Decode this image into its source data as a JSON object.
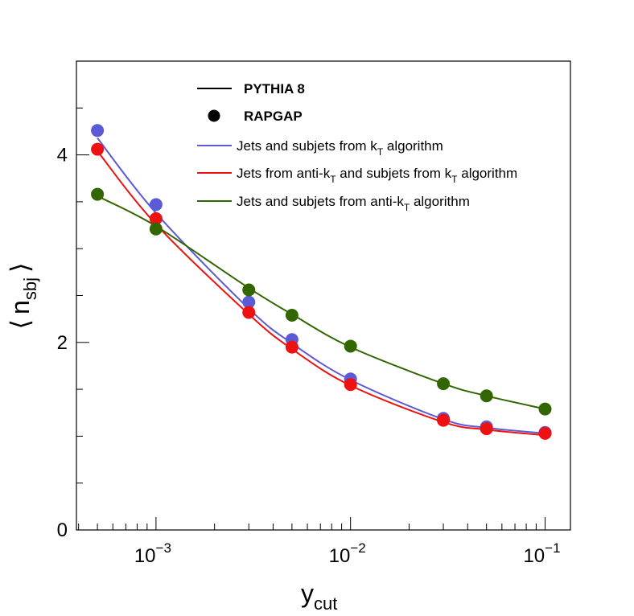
{
  "chart_data": {
    "type": "line",
    "x_scale": "log",
    "xlabel": {
      "main": "y",
      "sub": "cut"
    },
    "ylabel": {
      "left": "⟨",
      "main": "n",
      "sub": "sbj",
      "right": "⟩"
    },
    "xlim": [
      0.00039,
      0.135
    ],
    "ylim": [
      0,
      5
    ],
    "y_ticks": [
      {
        "value": 0,
        "label": "0"
      },
      {
        "value": 2,
        "label": "2"
      },
      {
        "value": 4,
        "label": "4"
      }
    ],
    "x_ticks": [
      {
        "value": 0.001,
        "base": "10",
        "exp": "−3"
      },
      {
        "value": 0.01,
        "base": "10",
        "exp": "−2"
      },
      {
        "value": 0.1,
        "base": "10",
        "exp": "−1"
      }
    ],
    "x": [
      0.0005,
      0.001,
      0.003,
      0.005,
      0.01,
      0.03,
      0.05,
      0.1
    ],
    "series": [
      {
        "name": "kt",
        "color": "#5b5bd6",
        "values": [
          4.26,
          3.47,
          2.43,
          2.03,
          1.61,
          1.19,
          1.1,
          1.04
        ],
        "curve": [
          [
            0.0005,
            4.18
          ],
          [
            0.001,
            3.38
          ],
          [
            0.003,
            2.36
          ],
          [
            0.005,
            1.99
          ],
          [
            0.01,
            1.6
          ],
          [
            0.03,
            1.18
          ],
          [
            0.05,
            1.09
          ],
          [
            0.1,
            1.03
          ]
        ]
      },
      {
        "name": "antikt-kt",
        "color": "#ee1111",
        "values": [
          4.06,
          3.32,
          2.32,
          1.95,
          1.55,
          1.17,
          1.08,
          1.03
        ],
        "curve": [
          [
            0.0005,
            4.04
          ],
          [
            0.001,
            3.26
          ],
          [
            0.003,
            2.3
          ],
          [
            0.005,
            1.93
          ],
          [
            0.01,
            1.54
          ],
          [
            0.03,
            1.15
          ],
          [
            0.05,
            1.07
          ],
          [
            0.1,
            1.01
          ]
        ]
      },
      {
        "name": "antikt",
        "color": "#336600",
        "values": [
          3.58,
          3.21,
          2.56,
          2.29,
          1.96,
          1.56,
          1.43,
          1.29
        ],
        "curve": [
          [
            0.0005,
            3.56
          ],
          [
            0.001,
            3.24
          ],
          [
            0.003,
            2.58
          ],
          [
            0.005,
            2.3
          ],
          [
            0.01,
            1.95
          ],
          [
            0.03,
            1.56
          ],
          [
            0.05,
            1.43
          ],
          [
            0.1,
            1.29
          ]
        ]
      }
    ],
    "legend": {
      "placement": "top-center",
      "style_entries": [
        {
          "symbol": "line",
          "label": "PYTHIA 8"
        },
        {
          "symbol": "marker",
          "label": "RAPGAP"
        }
      ],
      "series_entries": [
        {
          "series": "kt",
          "parts": [
            "Jets and subjets from k",
            "T",
            " algorithm"
          ]
        },
        {
          "series": "antikt-kt",
          "parts": [
            "Jets from anti-k",
            "T",
            " and subjets from k",
            "T",
            " algorithm"
          ]
        },
        {
          "series": "antikt",
          "parts": [
            "Jets and subjets from anti-k",
            "T",
            " algorithm"
          ]
        }
      ]
    }
  }
}
